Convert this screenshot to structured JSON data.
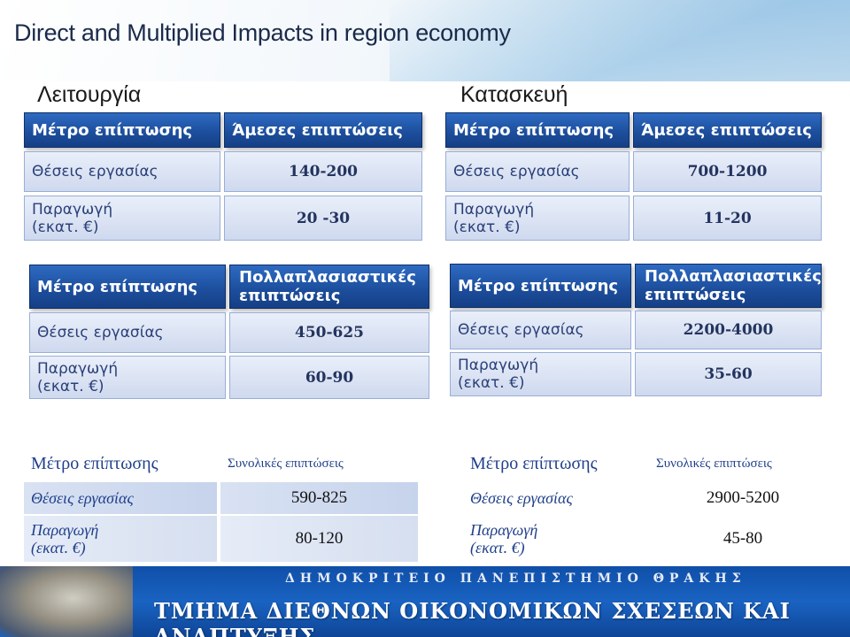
{
  "title": "Direct  and Multiplied Impacts in region economy",
  "sections": {
    "left": "Λειτουργία",
    "right": "Κατασκευή"
  },
  "direct": {
    "left": {
      "h1": "Μέτρο επίπτωσης",
      "h2": "Άμεσες επιπτώσεις",
      "r1_label": "Θέσεις εργασίας",
      "r1_value": "140-200",
      "r2_label_a": "Παραγωγή",
      "r2_label_b": "(εκατ. €)",
      "r2_value": "20 -30"
    },
    "right": {
      "h1": "Μέτρο επίπτωσης",
      "h2": "Άμεσες επιπτώσεις",
      "r1_label": "Θέσεις εργασίας",
      "r1_value": "700-1200",
      "r2_label_a": "Παραγωγή",
      "r2_label_b": "(εκατ. €)",
      "r2_value": "11-20"
    }
  },
  "multiplied": {
    "left": {
      "h1": "Μέτρο επίπτωσης",
      "h2_a": "Πολλαπλασιαστικές",
      "h2_b": "επιπτώσεις",
      "r1_label": "Θέσεις εργασίας",
      "r1_value": "450-625",
      "r2_label_a": "Παραγωγή",
      "r2_label_b": "(εκατ. €)",
      "r2_value": "60-90"
    },
    "right": {
      "h1": "Μέτρο επίπτωσης",
      "h2_a": "Πολλαπλασιαστικές",
      "h2_b": "επιπτώσεις",
      "r1_label": "Θέσεις εργασίας",
      "r1_value": "2200-4000",
      "r2_label_a": "Παραγωγή",
      "r2_label_b": "(εκατ. €)",
      "r2_value": "35-60"
    }
  },
  "total": {
    "left": {
      "h1": "Μέτρο επίπτωσης",
      "h2": "Συνολικές επιπτώσεις",
      "r1_label": "Θέσεις εργασίας",
      "r1_value": "590-825",
      "r2_label_a": "Παραγωγή",
      "r2_label_b": "(εκατ. €)",
      "r2_value": "80-120"
    },
    "right": {
      "h1": "Μέτρο επίπτωσης",
      "h2": "Συνολικές επιπτώσεις",
      "r1_label": "Θέσεις εργασίας",
      "r1_value": "2900-5200",
      "r2_label_a": "Παραγωγή",
      "r2_label_b": "(εκατ. €)",
      "r2_value": "45-80"
    }
  },
  "footer": {
    "line1": "ΔΗΜΟΚΡΙΤΕΙΟ ΠΑΝΕΠΙΣΤΗΜΙΟ ΘΡΑΚΗΣ",
    "line2": "ΤΜΗΜΑ ΔΙΕΘΝΩΝ ΟΙΚΟΝΟΜΙΚΩΝ ΣΧΕΣΕΩΝ ΚΑΙ ΑΝΑΠΤΥΞΗΣ"
  },
  "colors": {
    "header_blue": "#1d4f9e",
    "row_label_blue": "#2a3f78",
    "serif_label_blue": "#1f3f8a",
    "footer_blue": "#1a63c2"
  }
}
